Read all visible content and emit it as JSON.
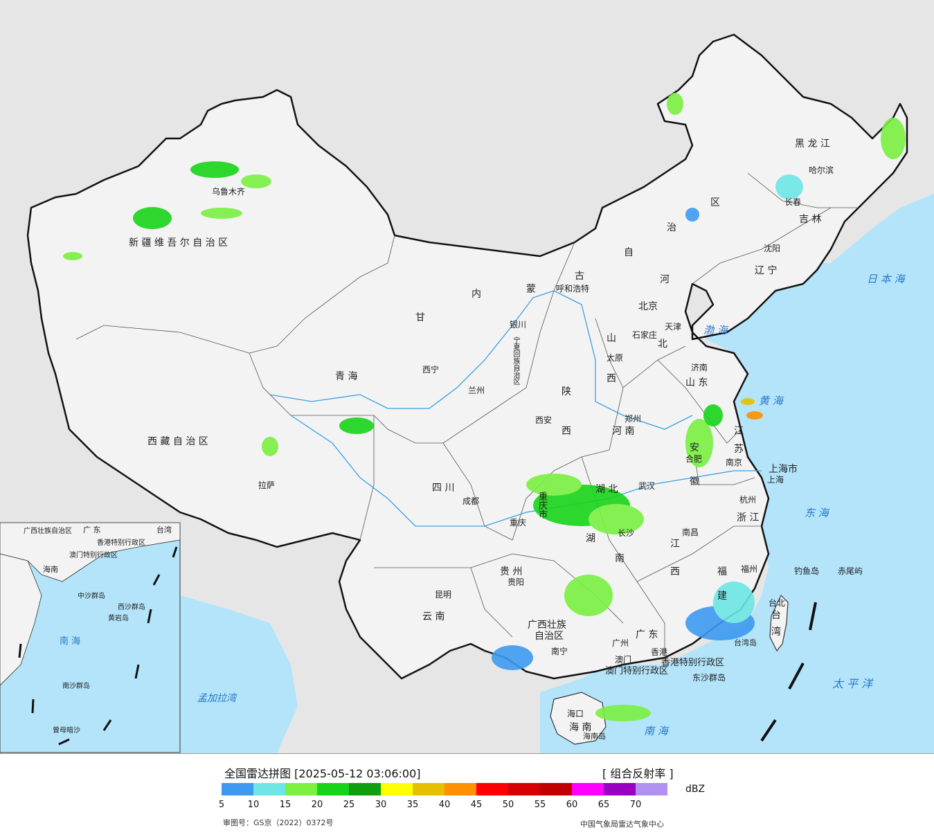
{
  "title": "全国雷达拼图",
  "timestamp": "[2025-05-12 03:06:00]",
  "product": "[ 组合反射率 ]",
  "unit": "dBZ",
  "review_number": "审图号：GS京（2022）0372号",
  "agency": "中国气象局雷达气象中心",
  "colors": {
    "land": "#f3f3f3",
    "sea": "#b3e4fa",
    "outside": "#e6e6e6",
    "border": "#111111",
    "river": "#3aa0e0"
  },
  "legend": {
    "ticks": [
      "5",
      "10",
      "15",
      "20",
      "25",
      "30",
      "35",
      "40",
      "45",
      "50",
      "55",
      "60",
      "65",
      "70"
    ],
    "colors": [
      "#3d9af0",
      "#6ee6e6",
      "#7af040",
      "#18d418",
      "#0e9e0e",
      "#ffff00",
      "#e6c000",
      "#ff9000",
      "#ff0000",
      "#d60000",
      "#c00000",
      "#ff00ff",
      "#9a00c0",
      "#b090f0"
    ]
  },
  "regions": [
    "新疆维吾尔自治区",
    "西藏自治区",
    "青海",
    "甘肃",
    "内蒙古自治区",
    "四川",
    "云南",
    "黑龙江",
    "吉林",
    "辽宁",
    "河北",
    "山西",
    "陕西",
    "河南",
    "山东",
    "湖北",
    "湖南",
    "江西",
    "安徽",
    "江苏",
    "浙江",
    "福建",
    "广东",
    "广西壮族自治区",
    "贵州",
    "重庆市",
    "宁夏回族自治区",
    "海南",
    "台湾",
    "上海市",
    "香港特别行政区",
    "澳门特别行政区"
  ],
  "region_text": {
    "xinjiang": "新 疆 维 吾 尔 自 治 区",
    "xizang": "西 藏 自 治 区",
    "qinghai": "青    海",
    "gansu": "甘",
    "neimeng_1": "内",
    "neimeng_2": "蒙",
    "neimeng_3": "古",
    "neimeng_4": "自",
    "neimeng_5": "治",
    "neimeng_6": "区",
    "heilongjiang": "黑  龙  江",
    "jilin": "吉  林",
    "liaoning": "辽  宁",
    "hebei_1": "河",
    "hebei_2": "北",
    "shanxi_1": "山",
    "shanxi_2": "西",
    "shaanxi_1": "陕",
    "shaanxi_2": "西",
    "henan": "河    南",
    "shandong": "山  东",
    "jiangsu_1": "江",
    "jiangsu_2": "苏",
    "anhui_1": "安",
    "anhui_2": "徽",
    "hubei": "湖    北",
    "hunan_1": "湖",
    "hunan_2": "南",
    "sichuan": "四    川",
    "chongqing": "重庆市",
    "guizhou": "贵  州",
    "yunnan": "云   南",
    "guangxi_1": "广西壮族",
    "guangxi_2": "自治区",
    "guangdong": "广   东",
    "jiangxi_1": "江",
    "jiangxi_2": "西",
    "zhejiang": "浙  江",
    "fujian_1": "福",
    "fujian_2": "建",
    "taiwan_1": "台",
    "taiwan_2": "湾",
    "shanghai": "上海市",
    "hainan": "海   南",
    "ningxia": "宁夏回族自治区",
    "hk": "香港特别行政区",
    "macau": "澳门特别行政区",
    "beijing_label": "北京市",
    "tianjin_label": "天津"
  },
  "cities": [
    "乌鲁木齐",
    "拉萨",
    "西宁",
    "兰州",
    "银川",
    "呼和浩特",
    "北京",
    "天津",
    "石家庄",
    "太原",
    "西安",
    "郑州",
    "济南",
    "南京",
    "合肥",
    "上海",
    "杭州",
    "武汉",
    "长沙",
    "南昌",
    "福州",
    "台北",
    "广州",
    "香港",
    "澳门",
    "南宁",
    "贵阳",
    "昆明",
    "成都",
    "重庆",
    "沈阳",
    "长春",
    "哈尔滨",
    "海口"
  ],
  "seas": {
    "japan_sea": "日 本 海",
    "bohai": "渤 海",
    "yellow_sea": "黄 海",
    "east_sea": "东 海",
    "pacific": "太  平  洋",
    "south_sea": "南    海",
    "bay_of_bengal": "孟加拉湾"
  },
  "islands": {
    "diaoyu": "钓鱼岛",
    "chiwei": "赤尾屿",
    "dongsha": "东沙群岛",
    "hainan_island": "海南岛",
    "taiwan_island": "台湾岛"
  },
  "inset": {
    "labels": {
      "guangdong": "广 东",
      "taiwan": "台湾",
      "guangxi": "广西壮族自治区",
      "hk": "香港特别行政区",
      "macau": "澳门特别行政区",
      "hainan": "海南",
      "south_sea": "南   海",
      "zhongsha": "中沙群岛",
      "huangyan": "黄岩岛",
      "xisha": "西沙群岛",
      "nansha": "南沙群岛",
      "zengmu": "曾母暗沙"
    }
  }
}
